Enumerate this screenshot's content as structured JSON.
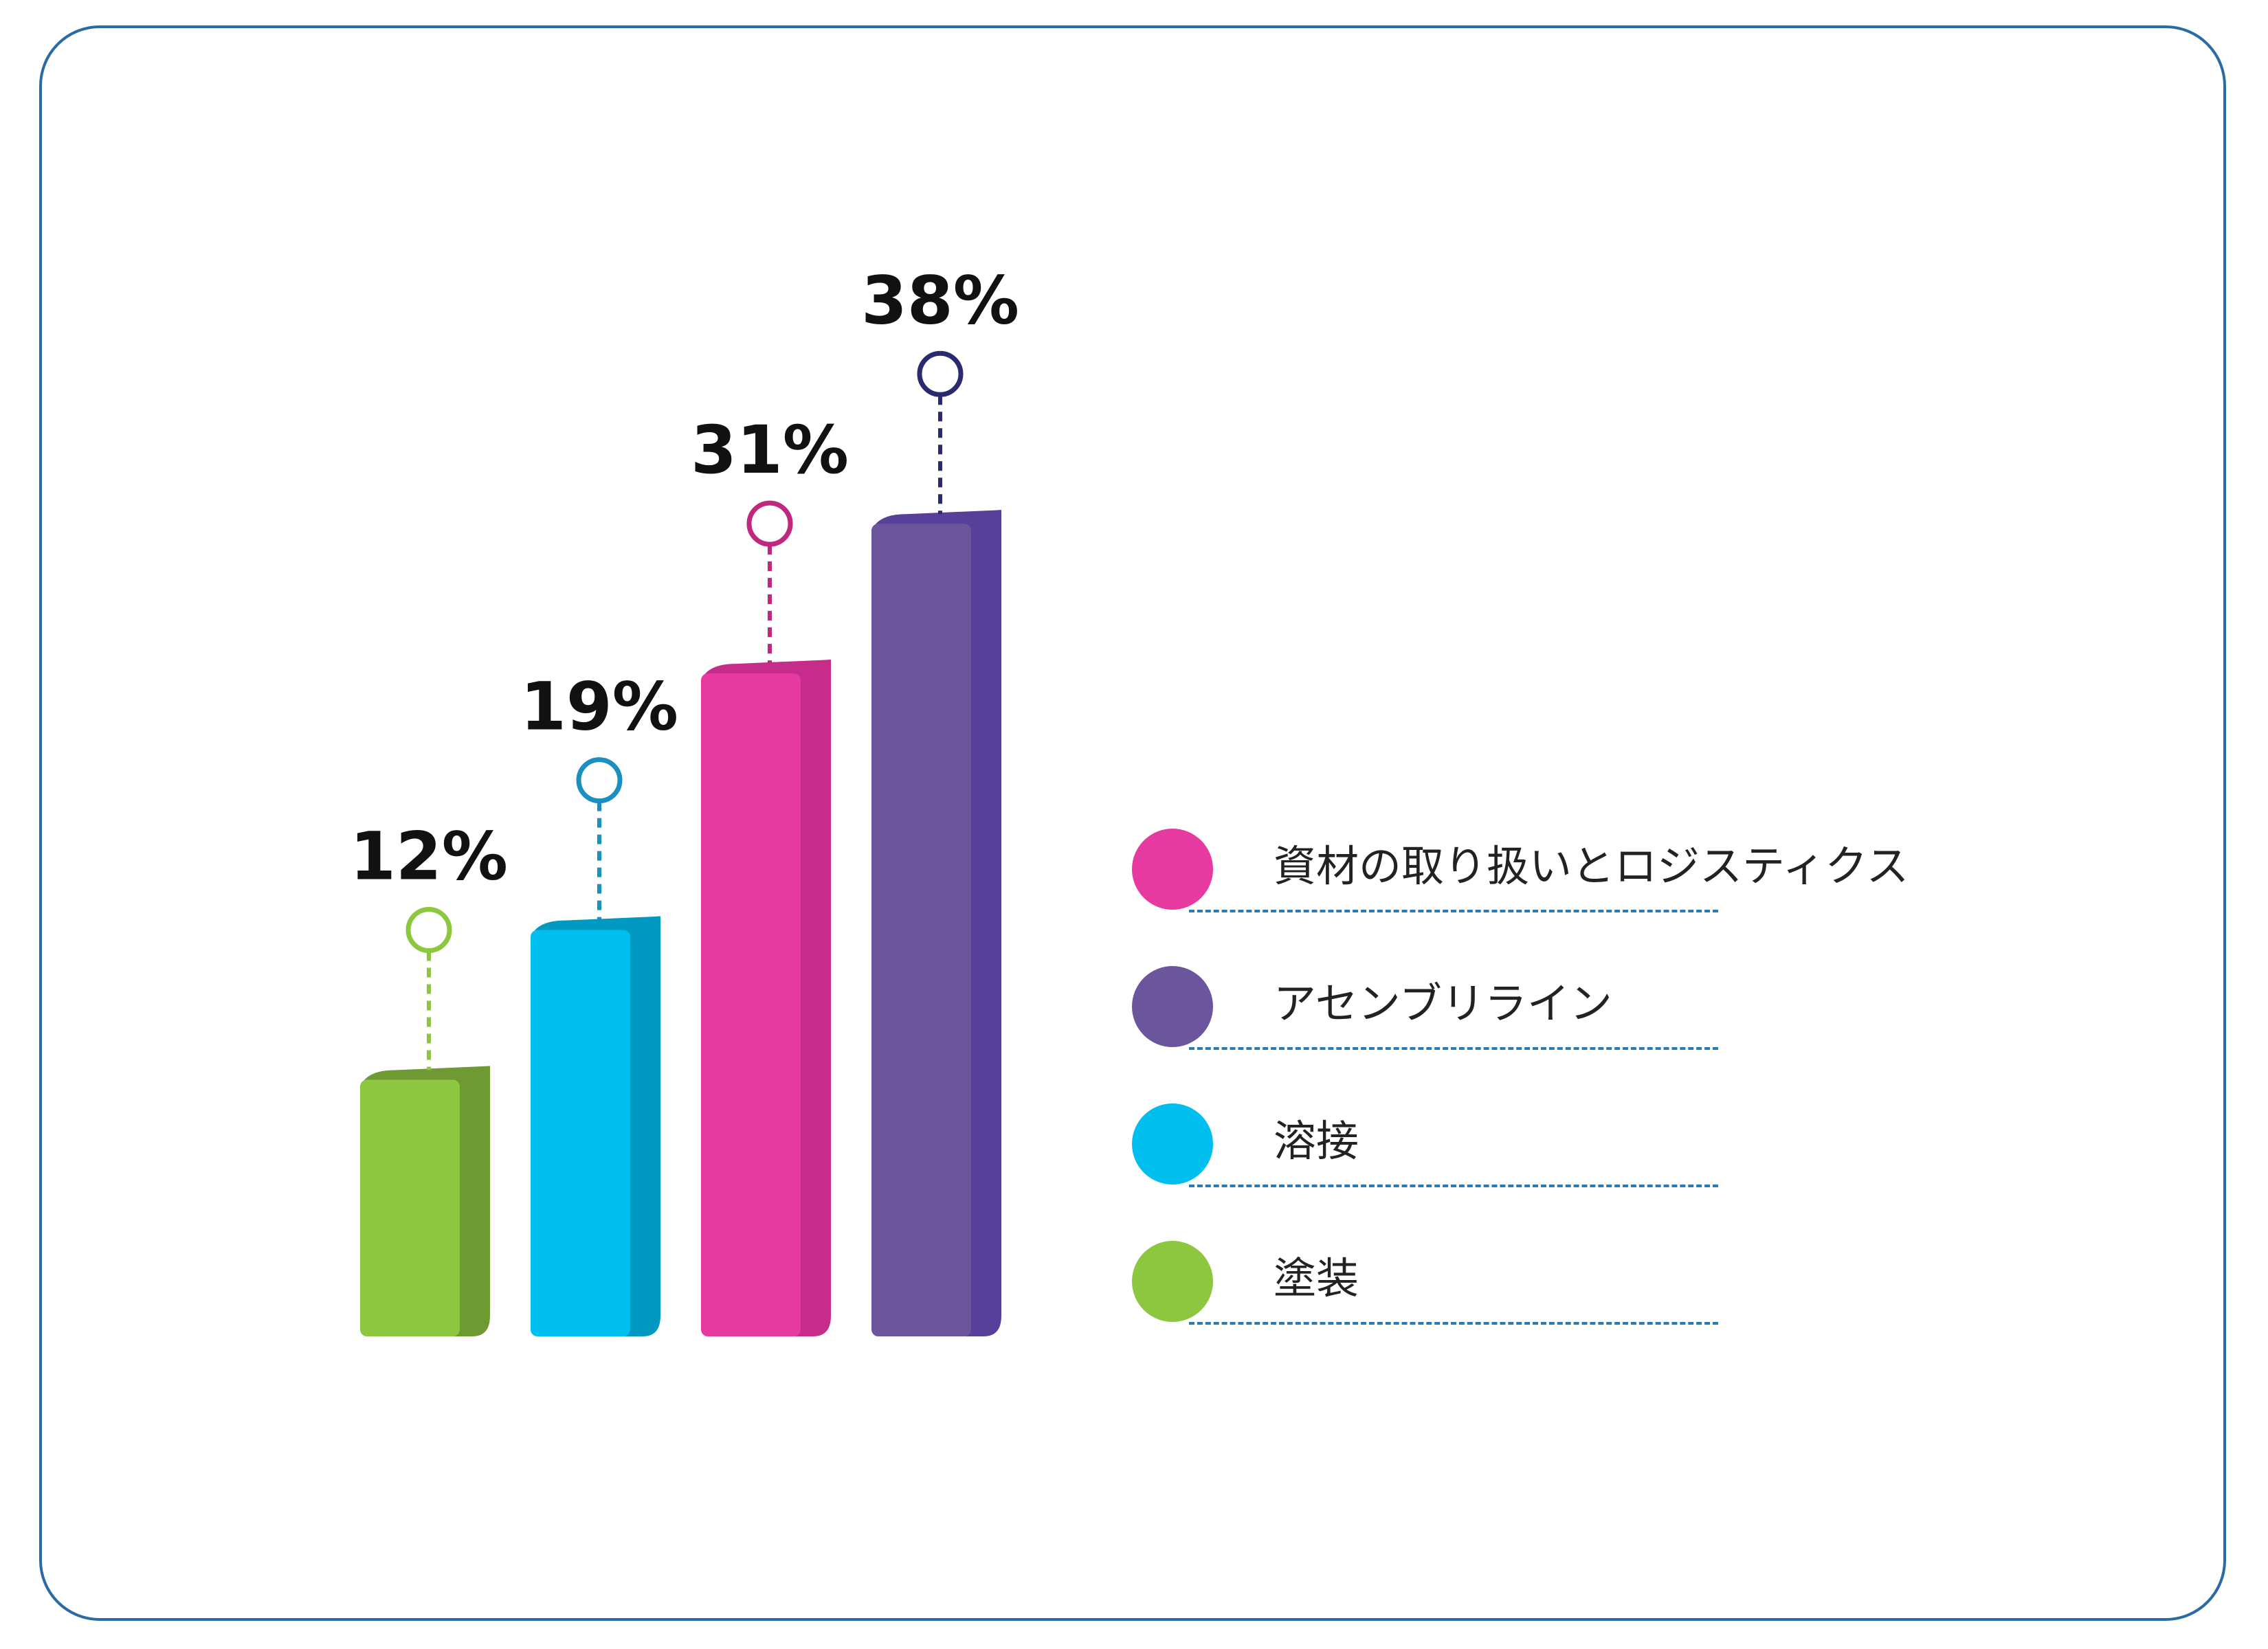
{
  "chart_data": {
    "type": "bar",
    "categories": [
      "塗装",
      "溶接",
      "資材の取り扱いとロジスティクス",
      "アセンブリライン"
    ],
    "values": [
      12,
      19,
      31,
      38
    ],
    "value_labels": [
      "12%",
      "19%",
      "31%",
      "38%"
    ],
    "colors": [
      "#8dc63f",
      "#00bfee",
      "#e63aa0",
      "#6b569e"
    ],
    "side_colors": [
      "#6f9a33",
      "#0099c2",
      "#c62d8a",
      "#56409a"
    ],
    "marker_colors": [
      "#8dc63f",
      "#1b8fc0",
      "#c0277f",
      "#2a2a6e"
    ],
    "ylim": [
      0,
      40
    ],
    "legend_position": "right",
    "legend": [
      {
        "label": "資材の取り扱いとロジスティクス",
        "color": "#e63aa0"
      },
      {
        "label": "アセンブリライン",
        "color": "#6b569e"
      },
      {
        "label": "溶接",
        "color": "#00bfee"
      },
      {
        "label": "塗装",
        "color": "#8dc63f"
      }
    ]
  }
}
